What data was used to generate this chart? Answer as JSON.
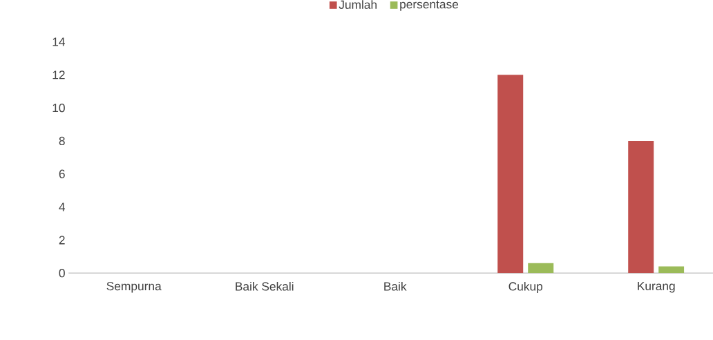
{
  "chart_data": {
    "type": "bar",
    "categories": [
      "Sempurna",
      "Baik Sekali",
      "Baik",
      "Cukup",
      "Kurang"
    ],
    "series": [
      {
        "name": "Jumlah",
        "color": "#c0504d",
        "values": [
          0,
          0,
          0,
          12,
          8
        ]
      },
      {
        "name": "persentase",
        "color": "#9bbb59",
        "values": [
          0,
          0,
          0,
          0.6,
          0.4
        ]
      }
    ],
    "ylim": [
      0,
      14
    ],
    "yticks": [
      0,
      2,
      4,
      6,
      8,
      10,
      12,
      14
    ],
    "grid": false,
    "legend": "top"
  }
}
